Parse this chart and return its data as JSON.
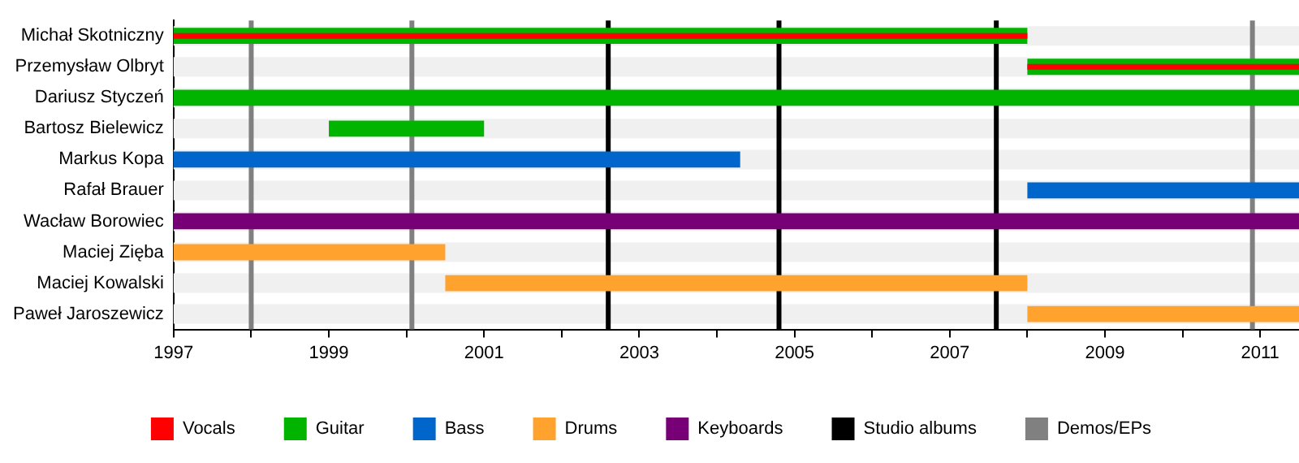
{
  "chart_data": {
    "type": "bar",
    "orientation": "horizontal",
    "categories": [
      "Michał Skotniczny",
      "Przemysław Olbryt",
      "Dariusz Styczeń",
      "Bartosz Bielewicz",
      "Markus Kopa",
      "Rafał Brauer",
      "Wacław Borowiec",
      "Maciej Zięba",
      "Maciej Kowalski",
      "Paweł Jaroszewicz"
    ],
    "series": [
      {
        "name": "Vocals",
        "color": "#ff0000",
        "base": [
          1997,
          2008,
          null,
          null,
          null,
          null,
          null,
          null,
          null,
          null
        ],
        "values": [
          11,
          3.5,
          null,
          null,
          null,
          null,
          null,
          null,
          null,
          null
        ]
      },
      {
        "name": "Guitar",
        "color": "#00b400",
        "base": [
          1997,
          2008,
          1997,
          1999,
          null,
          null,
          null,
          null,
          null,
          null
        ],
        "values": [
          11,
          3.5,
          14.5,
          2,
          null,
          null,
          null,
          null,
          null,
          null
        ]
      },
      {
        "name": "Bass",
        "color": "#0066cc",
        "base": [
          null,
          null,
          null,
          null,
          1997,
          2008,
          null,
          null,
          null,
          null
        ],
        "values": [
          null,
          null,
          null,
          null,
          7.3,
          3.5,
          null,
          null,
          null,
          null
        ]
      },
      {
        "name": "Drums",
        "color": "#ffa32e",
        "base": [
          null,
          null,
          null,
          null,
          null,
          null,
          null,
          1997,
          2000.5,
          2008
        ],
        "values": [
          null,
          null,
          null,
          null,
          null,
          null,
          null,
          3.5,
          7.5,
          3.5
        ]
      },
      {
        "name": "Keyboards",
        "color": "#770077",
        "base": [
          null,
          null,
          null,
          null,
          null,
          null,
          1997,
          null,
          null,
          null
        ],
        "values": [
          null,
          null,
          null,
          null,
          null,
          null,
          14.5,
          null,
          null,
          null
        ]
      }
    ],
    "xlim": [
      1997,
      2011.5
    ],
    "xticks": [
      1997,
      {
        "value": 1998,
        "label": null
      },
      1999,
      {
        "value": 2000,
        "label": null
      },
      2001,
      {
        "value": 2002,
        "label": null
      },
      2003,
      {
        "value": 2004,
        "label": null
      },
      2005,
      {
        "value": 2006,
        "label": null
      },
      2007,
      {
        "value": 2008,
        "label": null
      },
      2009,
      {
        "value": 2010,
        "label": null
      },
      2011
    ],
    "ref_lines": [
      {
        "axis": "x",
        "value": 2002.6,
        "label": "Studio albums",
        "color": "#000000"
      },
      {
        "axis": "x",
        "value": 2004.8,
        "label": null,
        "color": "#000000"
      },
      {
        "axis": "x",
        "value": 2007.6,
        "label": null,
        "color": "#000000"
      },
      {
        "axis": "x",
        "value": 1998,
        "label": "Demos/EPs",
        "color": "#808080"
      },
      {
        "axis": "x",
        "value": 2000.07,
        "label": null,
        "color": "#808080"
      },
      {
        "axis": "x",
        "value": 2010.9,
        "label": null,
        "color": "#808080"
      }
    ],
    "grid": false,
    "legend": "bottom"
  }
}
